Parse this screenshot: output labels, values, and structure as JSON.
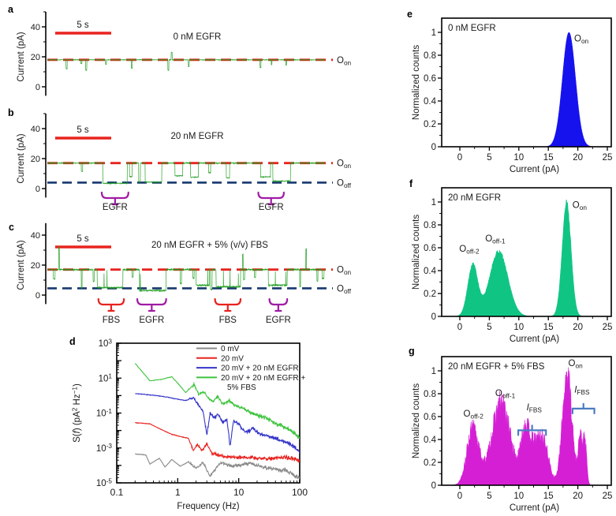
{
  "colors": {
    "trace_green": "#1f9e1f",
    "dashed_red": "#e8231f",
    "dashed_navy": "#17386e",
    "brace_purple": "#a01ba5",
    "brace_red": "#e8231f",
    "hist_blue": "#1612ee",
    "hist_green": "#10c584",
    "hist_magenta": "#d51fd5",
    "fbs_brace_blue": "#4a7cc0",
    "psd_gray": "#8a8a8a",
    "psd_red": "#e8231f",
    "psd_blue": "#3434c8",
    "psd_green": "#3ec43e",
    "axis": "#000000"
  },
  "panel_letters": {
    "a": "a",
    "b": "b",
    "c": "c",
    "d": "d",
    "e": "e",
    "f": "f",
    "g": "g"
  },
  "chart_data": [
    {
      "panel": "a",
      "type": "line",
      "kind": "current-trace",
      "title": "0 nM EGFR",
      "scalebar_label": "5 s",
      "scalebar_seconds": 5,
      "ylabel": "Current (pA)",
      "yticks": [
        0,
        20,
        40
      ],
      "yticks_minor": [
        10,
        30,
        50
      ],
      "duration_s": 25,
      "trace": {
        "on": 18,
        "noise": 0.33,
        "dip_rate": 0.0015,
        "dips": [
          12,
          16
        ],
        "dip_dur": [
          0.04,
          0.12
        ],
        "spikes": [
          {
            "t": 3.5,
            "pA": 11
          },
          {
            "t": 7.6,
            "pA": 12.5
          },
          {
            "t": 10.9,
            "pA": 11
          },
          {
            "t": 11.2,
            "pA": 23
          },
          {
            "t": 19.2,
            "pA": 13
          }
        ],
        "seed": 7
      },
      "on_state_label": "O~on~",
      "line_color_key": "trace_green",
      "on_line_color_key": "dashed_red"
    },
    {
      "panel": "b",
      "type": "line",
      "kind": "current-trace",
      "title": "20 nM EGFR",
      "scalebar_label": "5 s",
      "scalebar_seconds": 5,
      "ylabel": "Current (pA)",
      "yticks": [
        0,
        20,
        40
      ],
      "yticks_minor": [
        10,
        30,
        50
      ],
      "duration_s": 25,
      "trace": {
        "on": 17,
        "off": 4,
        "noise": 0.5,
        "off_noise": 0.45,
        "dip_rate": 0.007,
        "dips": [
          4,
          13
        ],
        "dip_dur": [
          0.05,
          0.3
        ],
        "segments": [
          {
            "t0": 5.0,
            "t1": 7.2,
            "pA": 3.5
          },
          {
            "t0": 8.8,
            "t1": 10.3,
            "pA": 4.3
          },
          {
            "t0": 11.5,
            "t1": 12.2,
            "pA": 8.5
          },
          {
            "t0": 12.9,
            "t1": 13.6,
            "pA": 7.6
          },
          {
            "t0": 19.2,
            "t1": 20.1,
            "pA": 7.8
          },
          {
            "t0": 20.3,
            "t1": 21.9,
            "pA": 5.0
          }
        ],
        "seed": 40
      },
      "on_state_label": "O~on~",
      "off_state_label": "O~off~",
      "line_color_key": "trace_green",
      "on_line_color_key": "dashed_red",
      "off_line_color_key": "dashed_navy",
      "braces": [
        {
          "t0": 4.9,
          "t1": 7.3,
          "label": "EGFR",
          "color_key": "brace_purple"
        },
        {
          "t0": 19.0,
          "t1": 21.3,
          "label": "EGFR",
          "color_key": "brace_purple"
        }
      ]
    },
    {
      "panel": "c",
      "type": "line",
      "kind": "current-trace",
      "title": "20 nM EGFR + 5% (v/v) FBS",
      "scalebar_label": "5 s",
      "scalebar_seconds": 5,
      "ylabel": "Current (pA)",
      "yticks": [
        0,
        20,
        40
      ],
      "yticks_minor": [
        10,
        30,
        50
      ],
      "duration_s": 25,
      "trace": {
        "on": 17,
        "off": 4.5,
        "noise": 0.8,
        "off_noise": 1.0,
        "dip_rate": 0.016,
        "dips": [
          3,
          12
        ],
        "dip_dur": [
          0.03,
          0.18
        ],
        "segments": [
          {
            "t0": 4.5,
            "t1": 6.8,
            "pA": 5
          },
          {
            "t0": 8.3,
            "t1": 10.7,
            "pA": 3
          },
          {
            "t0": 13.4,
            "t1": 14.6,
            "pA": 6.5
          },
          {
            "t0": 15.2,
            "t1": 17.4,
            "pA": 5.5
          },
          {
            "t0": 19.9,
            "t1": 21.6,
            "pA": 6.5
          }
        ],
        "seg_up_rate": 0.012,
        "up_spikes": [
          {
            "t": 1.05,
            "pA": 32
          },
          {
            "t": 17.6,
            "pA": 27
          },
          {
            "t": 23.3,
            "pA": 31
          }
        ],
        "seed": 9
      },
      "on_state_label": "O~on~",
      "off_state_label": "O~off~",
      "line_color_key": "trace_green",
      "on_line_color_key": "dashed_red",
      "off_line_color_key": "dashed_navy",
      "braces": [
        {
          "t0": 4.6,
          "t1": 6.9,
          "label": "FBS",
          "color_key": "brace_red"
        },
        {
          "t0": 8.1,
          "t1": 10.7,
          "label": "EGFR",
          "color_key": "brace_purple"
        },
        {
          "t0": 15.1,
          "t1": 17.4,
          "label": "FBS",
          "color_key": "brace_red"
        },
        {
          "t0": 20.0,
          "t1": 21.6,
          "label": "EGFR",
          "color_key": "brace_purple"
        }
      ]
    },
    {
      "panel": "d",
      "type": "line",
      "kind": "power-spectral-density",
      "log": true,
      "xlabel": "Frequency (Hz)",
      "ylabel_rich": "S(*f*) (pA^2^ Hz^−1^)",
      "xlim": [
        0.1,
        100
      ],
      "ylim_exponents": [
        -5,
        3
      ],
      "xtick_labels": [
        "0.1",
        "1",
        "10",
        "100"
      ],
      "ytick_label_exponents": [
        3,
        1,
        -1,
        -3,
        -5
      ],
      "legend_position": "top-center-right",
      "series": [
        {
          "name": "0 mV",
          "legend_lines": [
            "0 mV"
          ],
          "color_key": "psd_gray",
          "seed": 1,
          "anchors": [
            [
              0.2,
              0.00045
            ],
            [
              0.3,
              0.0004
            ],
            [
              0.35,
              0.00012
            ],
            [
              0.5,
              0.00026
            ],
            [
              0.62,
              8e-05
            ],
            [
              0.8,
              0.00022
            ],
            [
              1.1,
              9e-05
            ],
            [
              1.5,
              0.00016
            ],
            [
              2.0,
              7e-05
            ],
            [
              2.6,
              0.00014
            ],
            [
              3.4,
              2.5e-05
            ],
            [
              5,
              0.00014
            ],
            [
              8,
              9e-05
            ],
            [
              15,
              0.00013
            ],
            [
              30,
              7e-05
            ],
            [
              60,
              5e-05
            ],
            [
              100,
              1.8e-05
            ]
          ]
        },
        {
          "name": "20 mV",
          "legend_lines": [
            "20 mV"
          ],
          "color_key": "psd_red",
          "seed": 2,
          "anchors": [
            [
              0.2,
              0.028
            ],
            [
              0.35,
              0.024
            ],
            [
              0.55,
              0.011
            ],
            [
              0.8,
              0.006
            ],
            [
              1.2,
              0.0042
            ],
            [
              1.5,
              0.0036
            ],
            [
              1.8,
              0.0007
            ],
            [
              2.1,
              0.0016
            ],
            [
              2.5,
              0.0007
            ],
            [
              3.0,
              0.0017
            ],
            [
              3.6,
              0.0005
            ],
            [
              5,
              0.00035
            ],
            [
              8,
              0.0003
            ],
            [
              15,
              0.00028
            ],
            [
              30,
              0.00024
            ],
            [
              60,
              0.0003
            ],
            [
              100,
              0.00018
            ]
          ]
        },
        {
          "name": "20 mV + 20 nM EGFR",
          "legend_lines": [
            "20 mV + 20 nM EGFR"
          ],
          "color_key": "psd_blue",
          "seed": 3,
          "anchors": [
            [
              0.2,
              1.3
            ],
            [
              0.4,
              1.05
            ],
            [
              0.7,
              0.8
            ],
            [
              1.0,
              0.62
            ],
            [
              1.35,
              0.52
            ],
            [
              1.8,
              0.75
            ],
            [
              2.2,
              0.28
            ],
            [
              2.6,
              0.13
            ],
            [
              3.0,
              0.0055
            ],
            [
              3.4,
              0.1
            ],
            [
              4.0,
              0.05
            ],
            [
              4.6,
              0.09
            ],
            [
              5.5,
              0.03
            ],
            [
              6.4,
              0.045
            ],
            [
              7.2,
              0.0012
            ],
            [
              8.2,
              0.035
            ],
            [
              10,
              0.022
            ],
            [
              13,
              0.008
            ],
            [
              17,
              0.013
            ],
            [
              23,
              0.006
            ],
            [
              32,
              0.0045
            ],
            [
              45,
              0.003
            ],
            [
              63,
              0.002
            ],
            [
              82,
              0.0012
            ],
            [
              100,
              0.0005
            ]
          ]
        },
        {
          "name": "20 mV + 20 nM EGFR + 5% FBS",
          "legend_lines": [
            "20 mV + 20 nM EGFR +",
            "5% FBS"
          ],
          "color_key": "psd_green",
          "seed": 4,
          "anchors": [
            [
              0.2,
              70
            ],
            [
              0.35,
              7
            ],
            [
              0.55,
              8.5
            ],
            [
              0.8,
              12
            ],
            [
              1.1,
              3.5
            ],
            [
              1.35,
              1.5
            ],
            [
              1.6,
              2.6
            ],
            [
              1.85,
              4.5
            ],
            [
              2.2,
              1.2
            ],
            [
              2.7,
              1.6
            ],
            [
              3.2,
              0.7
            ],
            [
              3.8,
              0.45
            ],
            [
              4.5,
              0.9
            ],
            [
              5.5,
              0.33
            ],
            [
              7,
              0.5
            ],
            [
              9,
              0.26
            ],
            [
              12,
              0.17
            ],
            [
              16,
              0.1
            ],
            [
              22,
              0.065
            ],
            [
              30,
              0.05
            ],
            [
              42,
              0.025
            ],
            [
              60,
              0.014
            ],
            [
              80,
              0.008
            ],
            [
              100,
              0.0035
            ]
          ]
        }
      ]
    },
    {
      "panel": "e",
      "type": "histogram",
      "title": "0 nM EGFR",
      "xlabel": "Current (pA)",
      "ylabel": "Normalized counts",
      "xticks": [
        0,
        5,
        10,
        15,
        20,
        25
      ],
      "ytick_values": [
        0,
        0.2,
        0.4,
        0.6,
        0.8,
        1
      ],
      "ytick_labels": [
        "0",
        "0.2",
        "0.4",
        "0.6",
        "0.8",
        "1"
      ],
      "fill_color_key": "hist_blue",
      "noise": 0,
      "seed": 3,
      "peaks": [
        {
          "center": 18.5,
          "height": 1.0,
          "sigma": 1.1,
          "label": "O~on~"
        }
      ],
      "annotations": [
        {
          "text": "O~on~",
          "pA": 20.6,
          "y": 0.92
        }
      ]
    },
    {
      "panel": "f",
      "type": "histogram",
      "title": "20 nM EGFR",
      "xlabel": "Current (pA)",
      "ylabel": "Normalized counts",
      "xticks": [
        0,
        5,
        10,
        15,
        20,
        25
      ],
      "ytick_values": [
        0,
        0.2,
        0.4,
        0.6,
        0.8,
        1
      ],
      "ytick_labels": [
        "0",
        "0.2",
        "0.4",
        "0.6",
        "0.8",
        "1"
      ],
      "fill_color_key": "hist_green",
      "noise": 0.03,
      "seed": 5,
      "peaks": [
        {
          "center": 2.2,
          "height": 0.45,
          "sigma": 0.85,
          "label": "O~off-2~"
        },
        {
          "center": 6.6,
          "height": 0.57,
          "sigma": 1.55,
          "label": "O~off-1~"
        },
        {
          "center": 18.1,
          "height": 1.0,
          "sigma": 0.75,
          "label": "O~on~"
        }
      ],
      "annotations": [
        {
          "text": "O~off-2~",
          "pA": 1.6,
          "y": 0.565
        },
        {
          "text": "O~off-1~",
          "pA": 6.0,
          "y": 0.655
        },
        {
          "text": "O~on~",
          "pA": 20.3,
          "y": 0.95
        }
      ]
    },
    {
      "panel": "g",
      "type": "histogram",
      "title": "20 nM EGFR + 5% FBS",
      "xlabel": "Current (pA)",
      "ylabel": "Normalized counts",
      "xticks": [
        0,
        5,
        10,
        15,
        20,
        25
      ],
      "ytick_values": [
        0,
        0.2,
        0.4,
        0.6,
        0.8,
        1
      ],
      "ytick_labels": [
        "0",
        "0.2",
        "0.4",
        "0.6",
        "0.8",
        "1"
      ],
      "fill_color_key": "hist_magenta",
      "noise": 0.16,
      "seed": 13,
      "peaks": [
        {
          "center": 2.2,
          "height": 0.5,
          "sigma": 1.0,
          "label": "O~off-2~"
        },
        {
          "center": 7.0,
          "height": 0.72,
          "sigma": 1.6,
          "label": "O~off-1~"
        },
        {
          "center": 11.0,
          "height": 0.4,
          "sigma": 0.7,
          "label": "I_FBS band"
        },
        {
          "center": 12.6,
          "height": 0.32,
          "sigma": 1.1,
          "label": ""
        },
        {
          "center": 14.3,
          "height": 0.3,
          "sigma": 0.9,
          "label": ""
        },
        {
          "center": 18.2,
          "height": 1.0,
          "sigma": 0.8,
          "label": "O~on~"
        },
        {
          "center": 20.4,
          "height": 0.42,
          "sigma": 0.35,
          "label": "I_FBS spikes"
        },
        {
          "center": 21.2,
          "height": 0.38,
          "sigma": 0.3,
          "label": ""
        }
      ],
      "annotations": [
        {
          "text": "O~off-2~",
          "pA": 2.3,
          "y": 0.6
        },
        {
          "text": "O~off-1~",
          "pA": 7.7,
          "y": 0.78
        },
        {
          "text": "*I*~FBS~",
          "pA": 12.6,
          "y": 0.655
        },
        {
          "text": "O~on~",
          "pA": 19.6,
          "y": 1.04
        },
        {
          "text": "*I*~FBS~",
          "pA": 20.7,
          "y": 0.81
        }
      ],
      "range_braces": [
        {
          "x0": 9.9,
          "x1": 14.6,
          "y": 0.48,
          "color_key": "fbs_brace_blue"
        },
        {
          "x0": 19.1,
          "x1": 22.8,
          "y": 0.67,
          "color_key": "fbs_brace_blue"
        }
      ]
    }
  ]
}
